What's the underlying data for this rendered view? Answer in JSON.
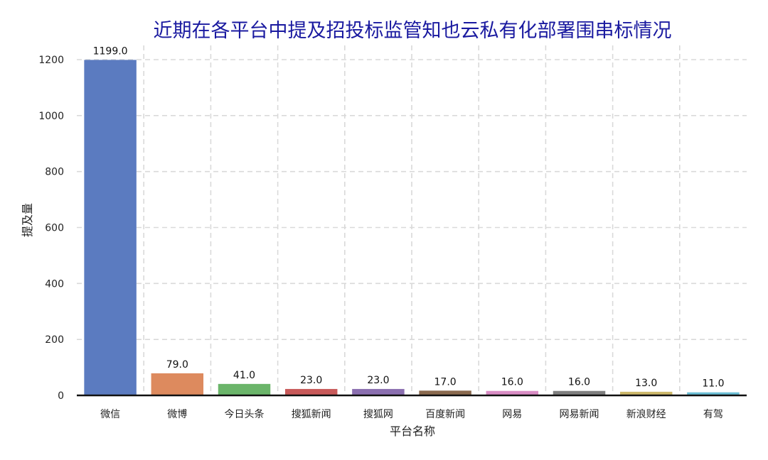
{
  "chart_data": {
    "type": "bar",
    "title": "近期在各平台中提及招投标监管知也云私有化部署围串标情况",
    "xlabel": "平台名称",
    "ylabel": "提及量",
    "categories": [
      "微信",
      "微博",
      "今日头条",
      "搜狐新闻",
      "搜狐网",
      "百度新闻",
      "网易",
      "网易新闻",
      "新浪财经",
      "有驾"
    ],
    "values": [
      1199.0,
      79.0,
      41.0,
      23.0,
      23.0,
      17.0,
      16.0,
      16.0,
      13.0,
      11.0
    ],
    "data_labels": [
      "1199.0",
      "79.0",
      "41.0",
      "23.0",
      "23.0",
      "17.0",
      "16.0",
      "16.0",
      "13.0",
      "11.0"
    ],
    "colors": [
      "#5b7bc0",
      "#dd8a5e",
      "#6bb56a",
      "#c85a5a",
      "#8b6fb0",
      "#8a6a4f",
      "#d98cc4",
      "#7f7f7f",
      "#cdb86a",
      "#6cbfd6"
    ],
    "ylim": [
      0,
      1200
    ],
    "yticks": [
      0,
      200,
      400,
      600,
      800,
      1000,
      1200
    ],
    "grid": true,
    "legend": "none"
  }
}
